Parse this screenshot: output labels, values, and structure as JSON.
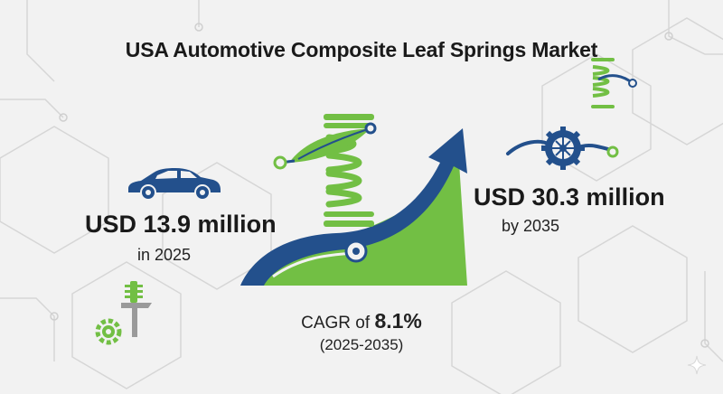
{
  "title": "USA Automotive Composite Leaf Springs Market",
  "start_value": {
    "amount": "USD 13.9 million",
    "period": "in 2025"
  },
  "end_value": {
    "amount": "USD 30.3 million",
    "period": "by 2035"
  },
  "cagr": {
    "prefix": "CAGR of ",
    "value": "8.1%",
    "range": "(2025-2035)"
  },
  "colors": {
    "navy": "#23508c",
    "green": "#72bf44",
    "text": "#1a1a1a",
    "background": "#f2f2f2"
  },
  "icons": [
    "car-icon",
    "leaf-spring-coil-icon",
    "growth-arrow-icon",
    "gear-icon",
    "small-spring-icon",
    "spring-mount-icon",
    "sparkle-icon"
  ]
}
